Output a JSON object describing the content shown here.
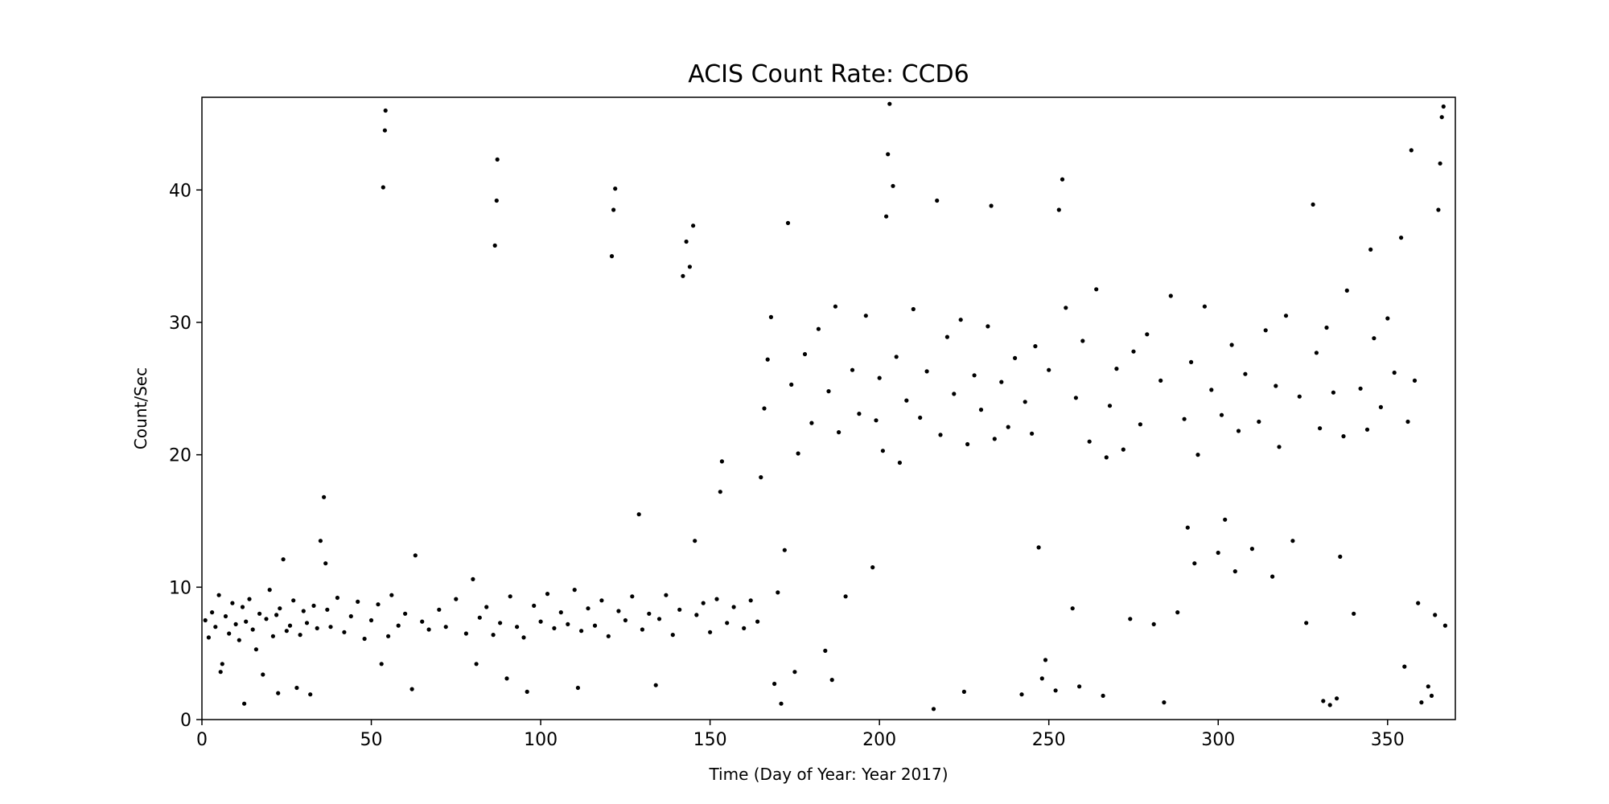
{
  "chart_data": {
    "type": "scatter",
    "title": "ACIS Count Rate: CCD6",
    "xlabel": "Time (Day of Year: Year 2017)",
    "ylabel": "Count/Sec",
    "xlim": [
      0,
      370
    ],
    "ylim": [
      0,
      47
    ],
    "xticks": [
      0,
      50,
      100,
      150,
      200,
      250,
      300,
      350
    ],
    "yticks": [
      0,
      10,
      20,
      30,
      40
    ],
    "grid": false,
    "legend": "none",
    "point_color": "#000000",
    "series": [
      {
        "points": [
          [
            1,
            7.5
          ],
          [
            2,
            6.2
          ],
          [
            3,
            8.1
          ],
          [
            4,
            7.0
          ],
          [
            5,
            9.4
          ],
          [
            5.5,
            3.6
          ],
          [
            6,
            4.2
          ],
          [
            7,
            7.8
          ],
          [
            8,
            6.5
          ],
          [
            9,
            8.8
          ],
          [
            10,
            7.2
          ],
          [
            11,
            6.0
          ],
          [
            12,
            8.5
          ],
          [
            12.5,
            1.2
          ],
          [
            13,
            7.4
          ],
          [
            14,
            9.1
          ],
          [
            15,
            6.8
          ],
          [
            16,
            5.3
          ],
          [
            17,
            8.0
          ],
          [
            18,
            3.4
          ],
          [
            19,
            7.6
          ],
          [
            20,
            9.8
          ],
          [
            21,
            6.3
          ],
          [
            22,
            7.9
          ],
          [
            22.5,
            2.0
          ],
          [
            23,
            8.4
          ],
          [
            24,
            12.1
          ],
          [
            25,
            6.7
          ],
          [
            26,
            7.1
          ],
          [
            27,
            9.0
          ],
          [
            28,
            2.4
          ],
          [
            29,
            6.4
          ],
          [
            30,
            8.2
          ],
          [
            31,
            7.3
          ],
          [
            32,
            1.9
          ],
          [
            33,
            8.6
          ],
          [
            34,
            6.9
          ],
          [
            35,
            13.5
          ],
          [
            36,
            16.8
          ],
          [
            36.5,
            11.8
          ],
          [
            37,
            8.3
          ],
          [
            38,
            7.0
          ],
          [
            40,
            9.2
          ],
          [
            42,
            6.6
          ],
          [
            44,
            7.8
          ],
          [
            46,
            8.9
          ],
          [
            48,
            6.1
          ],
          [
            50,
            7.5
          ],
          [
            52,
            8.7
          ],
          [
            53,
            4.2
          ],
          [
            53.5,
            40.2
          ],
          [
            54,
            44.5
          ],
          [
            54.2,
            46.0
          ],
          [
            55,
            6.3
          ],
          [
            56,
            9.4
          ],
          [
            58,
            7.1
          ],
          [
            60,
            8.0
          ],
          [
            62,
            2.3
          ],
          [
            63,
            12.4
          ],
          [
            65,
            7.4
          ],
          [
            67,
            6.8
          ],
          [
            70,
            8.3
          ],
          [
            72,
            7.0
          ],
          [
            75,
            9.1
          ],
          [
            78,
            6.5
          ],
          [
            80,
            10.6
          ],
          [
            81,
            4.2
          ],
          [
            82,
            7.7
          ],
          [
            84,
            8.5
          ],
          [
            86,
            6.4
          ],
          [
            86.5,
            35.8
          ],
          [
            87,
            39.2
          ],
          [
            87.2,
            42.3
          ],
          [
            88,
            7.3
          ],
          [
            90,
            3.1
          ],
          [
            91,
            9.3
          ],
          [
            93,
            7.0
          ],
          [
            95,
            6.2
          ],
          [
            96,
            2.1
          ],
          [
            98,
            8.6
          ],
          [
            100,
            7.4
          ],
          [
            102,
            9.5
          ],
          [
            104,
            6.9
          ],
          [
            106,
            8.1
          ],
          [
            108,
            7.2
          ],
          [
            110,
            9.8
          ],
          [
            111,
            2.4
          ],
          [
            112,
            6.7
          ],
          [
            114,
            8.4
          ],
          [
            116,
            7.1
          ],
          [
            118,
            9.0
          ],
          [
            120,
            6.3
          ],
          [
            121,
            35.0
          ],
          [
            121.5,
            38.5
          ],
          [
            122,
            40.1
          ],
          [
            123,
            8.2
          ],
          [
            125,
            7.5
          ],
          [
            127,
            9.3
          ],
          [
            129,
            15.5
          ],
          [
            130,
            6.8
          ],
          [
            132,
            8.0
          ],
          [
            134,
            2.6
          ],
          [
            135,
            7.6
          ],
          [
            137,
            9.4
          ],
          [
            139,
            6.4
          ],
          [
            141,
            8.3
          ],
          [
            142,
            33.5
          ],
          [
            143,
            36.1
          ],
          [
            144,
            34.2
          ],
          [
            145,
            37.3
          ],
          [
            145.5,
            13.5
          ],
          [
            146,
            7.9
          ],
          [
            148,
            8.8
          ],
          [
            150,
            6.6
          ],
          [
            152,
            9.1
          ],
          [
            153,
            17.2
          ],
          [
            153.5,
            19.5
          ],
          [
            155,
            7.3
          ],
          [
            157,
            8.5
          ],
          [
            160,
            6.9
          ],
          [
            162,
            9.0
          ],
          [
            164,
            7.4
          ],
          [
            165,
            18.3
          ],
          [
            166,
            23.5
          ],
          [
            167,
            27.2
          ],
          [
            168,
            30.4
          ],
          [
            169,
            2.7
          ],
          [
            170,
            9.6
          ],
          [
            171,
            1.2
          ],
          [
            172,
            12.8
          ],
          [
            173,
            37.5
          ],
          [
            174,
            25.3
          ],
          [
            175,
            3.6
          ],
          [
            176,
            20.1
          ],
          [
            178,
            27.6
          ],
          [
            180,
            22.4
          ],
          [
            182,
            29.5
          ],
          [
            184,
            5.2
          ],
          [
            185,
            24.8
          ],
          [
            186,
            3.0
          ],
          [
            187,
            31.2
          ],
          [
            188,
            21.7
          ],
          [
            190,
            9.3
          ],
          [
            192,
            26.4
          ],
          [
            194,
            23.1
          ],
          [
            196,
            30.5
          ],
          [
            198,
            11.5
          ],
          [
            199,
            22.6
          ],
          [
            200,
            25.8
          ],
          [
            201,
            20.3
          ],
          [
            202,
            38.0
          ],
          [
            202.5,
            42.7
          ],
          [
            203,
            46.5
          ],
          [
            204,
            40.3
          ],
          [
            205,
            27.4
          ],
          [
            206,
            19.4
          ],
          [
            208,
            24.1
          ],
          [
            210,
            31.0
          ],
          [
            212,
            22.8
          ],
          [
            214,
            26.3
          ],
          [
            216,
            0.8
          ],
          [
            217,
            39.2
          ],
          [
            218,
            21.5
          ],
          [
            220,
            28.9
          ],
          [
            222,
            24.6
          ],
          [
            224,
            30.2
          ],
          [
            225,
            2.1
          ],
          [
            226,
            20.8
          ],
          [
            228,
            26.0
          ],
          [
            230,
            23.4
          ],
          [
            232,
            29.7
          ],
          [
            233,
            38.8
          ],
          [
            234,
            21.2
          ],
          [
            236,
            25.5
          ],
          [
            238,
            22.1
          ],
          [
            240,
            27.3
          ],
          [
            242,
            1.9
          ],
          [
            243,
            24.0
          ],
          [
            245,
            21.6
          ],
          [
            246,
            28.2
          ],
          [
            247,
            13.0
          ],
          [
            248,
            3.1
          ],
          [
            249,
            4.5
          ],
          [
            250,
            26.4
          ],
          [
            252,
            2.2
          ],
          [
            253,
            38.5
          ],
          [
            254,
            40.8
          ],
          [
            255,
            31.1
          ],
          [
            257,
            8.4
          ],
          [
            258,
            24.3
          ],
          [
            259,
            2.5
          ],
          [
            260,
            28.6
          ],
          [
            262,
            21.0
          ],
          [
            264,
            32.5
          ],
          [
            266,
            1.8
          ],
          [
            267,
            19.8
          ],
          [
            268,
            23.7
          ],
          [
            270,
            26.5
          ],
          [
            272,
            20.4
          ],
          [
            274,
            7.6
          ],
          [
            275,
            27.8
          ],
          [
            277,
            22.3
          ],
          [
            279,
            29.1
          ],
          [
            281,
            7.2
          ],
          [
            283,
            25.6
          ],
          [
            284,
            1.3
          ],
          [
            286,
            32.0
          ],
          [
            288,
            8.1
          ],
          [
            290,
            22.7
          ],
          [
            291,
            14.5
          ],
          [
            292,
            27.0
          ],
          [
            293,
            11.8
          ],
          [
            294,
            20.0
          ],
          [
            296,
            31.2
          ],
          [
            298,
            24.9
          ],
          [
            300,
            12.6
          ],
          [
            301,
            23.0
          ],
          [
            302,
            15.1
          ],
          [
            304,
            28.3
          ],
          [
            305,
            11.2
          ],
          [
            306,
            21.8
          ],
          [
            308,
            26.1
          ],
          [
            310,
            12.9
          ],
          [
            312,
            22.5
          ],
          [
            314,
            29.4
          ],
          [
            316,
            10.8
          ],
          [
            317,
            25.2
          ],
          [
            318,
            20.6
          ],
          [
            320,
            30.5
          ],
          [
            322,
            13.5
          ],
          [
            324,
            24.4
          ],
          [
            326,
            7.3
          ],
          [
            328,
            38.9
          ],
          [
            329,
            27.7
          ],
          [
            330,
            22.0
          ],
          [
            331,
            1.4
          ],
          [
            332,
            29.6
          ],
          [
            333,
            1.1
          ],
          [
            334,
            24.7
          ],
          [
            335,
            1.6
          ],
          [
            336,
            12.3
          ],
          [
            337,
            21.4
          ],
          [
            338,
            32.4
          ],
          [
            340,
            8.0
          ],
          [
            342,
            25.0
          ],
          [
            344,
            21.9
          ],
          [
            345,
            35.5
          ],
          [
            346,
            28.8
          ],
          [
            348,
            23.6
          ],
          [
            350,
            30.3
          ],
          [
            352,
            26.2
          ],
          [
            354,
            36.4
          ],
          [
            355,
            4.0
          ],
          [
            356,
            22.5
          ],
          [
            357,
            43.0
          ],
          [
            358,
            25.6
          ],
          [
            359,
            8.8
          ],
          [
            360,
            1.3
          ],
          [
            362,
            2.5
          ],
          [
            363,
            1.8
          ],
          [
            364,
            7.9
          ],
          [
            365,
            38.5
          ],
          [
            365.5,
            42.0
          ],
          [
            366,
            45.5
          ],
          [
            366.5,
            46.3
          ],
          [
            367,
            7.1
          ]
        ]
      }
    ]
  }
}
